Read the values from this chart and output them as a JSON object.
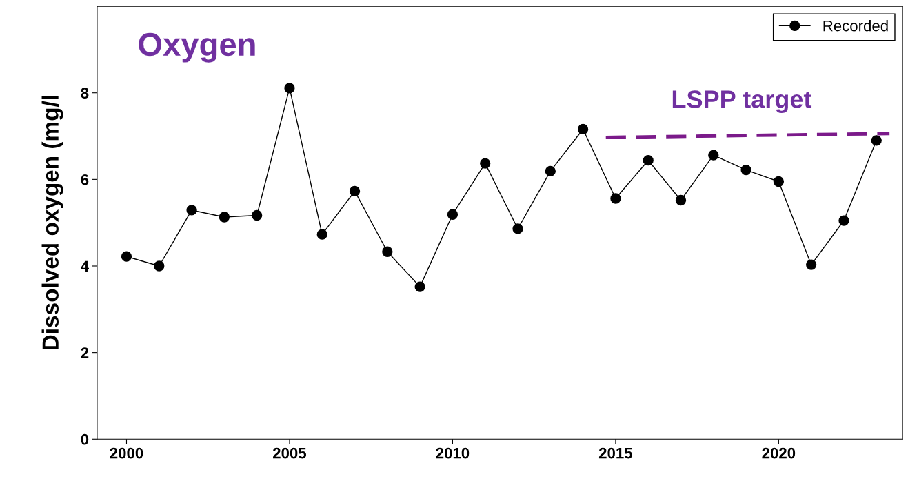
{
  "chart_data": {
    "type": "line",
    "title": "Oxygen",
    "ylabel": "Dissolved oxygen (mg/l",
    "x": [
      2000,
      2001,
      2002,
      2003,
      2004,
      2005,
      2006,
      2007,
      2008,
      2009,
      2010,
      2011,
      2012,
      2013,
      2014,
      2015,
      2016,
      2017,
      2018,
      2019,
      2020,
      2021,
      2022,
      2023
    ],
    "series": [
      {
        "name": "Recorded",
        "color": "#000000",
        "marker": "circle",
        "line_style": "solid",
        "values": [
          4.22,
          4.0,
          5.29,
          5.13,
          5.17,
          8.11,
          4.73,
          5.73,
          4.33,
          3.52,
          5.19,
          6.37,
          4.86,
          6.19,
          7.16,
          5.56,
          6.44,
          5.52,
          6.56,
          6.22,
          5.95,
          4.03,
          5.05,
          6.9
        ]
      },
      {
        "type": "line",
        "color": "#7b1a8a",
        "marker": "none",
        "line_style": "dashed",
        "x": [
          2014.7,
          2023.4
        ],
        "values": [
          6.97,
          7.06
        ]
      }
    ],
    "annotations": [
      "LSPP target"
    ],
    "xlim": [
      1999.1,
      2023.8
    ],
    "ylim": [
      0,
      10
    ],
    "xticks": [
      2000,
      2005,
      2010,
      2015,
      2020
    ],
    "yticks": [
      0,
      2,
      4,
      6,
      8
    ],
    "legend": "top right",
    "grid": false
  }
}
